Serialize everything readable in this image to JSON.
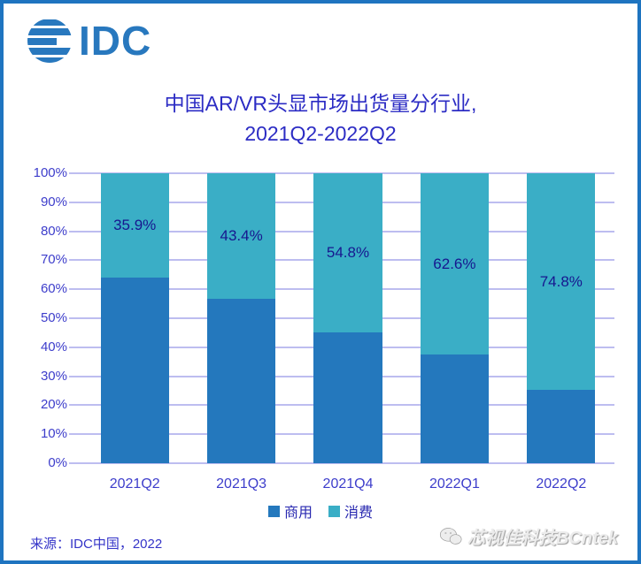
{
  "brand": {
    "logo_text": "IDC"
  },
  "title": {
    "line1": "中国AR/VR头显市场出货量分行业,",
    "line2": "2021Q2-2022Q2"
  },
  "colors": {
    "border": "#1E74C0",
    "logo": "#2878BE",
    "title_text": "#2C2CC4",
    "axis_text": "#3D3DCB",
    "grid": "#BDBDF0",
    "commercial": "#2478BD",
    "consumer": "#3AAEC6",
    "data_label": "#17178F",
    "legend_text": "#2828B0"
  },
  "chart_data": {
    "type": "bar",
    "stacked": true,
    "percent": true,
    "title": "中国AR/VR头显市场出货量分行业, 2021Q2-2022Q2",
    "categories": [
      "2021Q2",
      "2021Q3",
      "2021Q4",
      "2022Q1",
      "2022Q2"
    ],
    "series": [
      {
        "name": "商用",
        "color": "#2478BD",
        "values": [
          64.1,
          56.6,
          45.2,
          37.4,
          25.2
        ]
      },
      {
        "name": "消费",
        "color": "#3AAEC6",
        "values": [
          35.9,
          43.4,
          54.8,
          62.6,
          74.8
        ],
        "labels": [
          "35.9%",
          "43.4%",
          "54.8%",
          "62.6%",
          "74.8%"
        ]
      }
    ],
    "ylim": [
      0,
      100
    ],
    "y_ticks": [
      "0%",
      "10%",
      "20%",
      "30%",
      "40%",
      "50%",
      "60%",
      "70%",
      "80%",
      "90%",
      "100%"
    ],
    "grid": true,
    "legend_position": "bottom"
  },
  "legend": [
    {
      "label": "商用",
      "color": "#2478BD"
    },
    {
      "label": "消费",
      "color": "#3AAEC6"
    }
  ],
  "footer": {
    "source": "来源：IDC中国，2022",
    "watermark": "芯视佳科技BCntek"
  }
}
